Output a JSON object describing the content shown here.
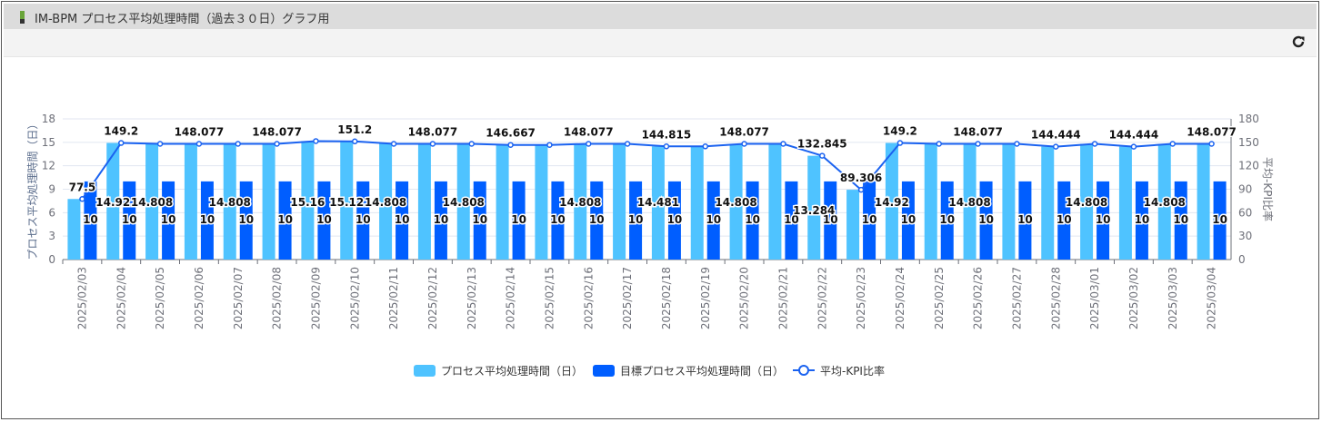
{
  "panel": {
    "title": "IM-BPM プロセス平均処理時間（過去３０日）グラフ用",
    "refresh_icon": "refresh-icon"
  },
  "colors": {
    "process": "#4fc3ff",
    "target": "#005eff",
    "ratio": "#1a62f0"
  },
  "chart_data": {
    "type": "bar+line",
    "categories": [
      "2025/02/03",
      "2025/02/04",
      "2025/02/05",
      "2025/02/06",
      "2025/02/07",
      "2025/02/08",
      "2025/02/09",
      "2025/02/10",
      "2025/02/11",
      "2025/02/12",
      "2025/02/13",
      "2025/02/14",
      "2025/02/15",
      "2025/02/16",
      "2025/02/17",
      "2025/02/18",
      "2025/02/19",
      "2025/02/20",
      "2025/02/21",
      "2025/02/22",
      "2025/02/23",
      "2025/02/24",
      "2025/02/25",
      "2025/02/26",
      "2025/02/27",
      "2025/02/28",
      "2025/03/01",
      "2025/03/02",
      "2025/03/03",
      "2025/03/04"
    ],
    "series": [
      {
        "name": "プロセス平均処理時間（日）",
        "type": "bar",
        "axis": "left",
        "values": [
          7.75,
          14.92,
          14.808,
          14.808,
          14.808,
          14.808,
          15.16,
          15.12,
          14.808,
          14.808,
          14.808,
          14.667,
          14.667,
          14.808,
          14.808,
          14.481,
          14.481,
          14.808,
          14.808,
          13.284,
          8.931,
          14.92,
          14.808,
          14.808,
          14.808,
          14.444,
          14.808,
          14.444,
          14.808,
          14.808
        ]
      },
      {
        "name": "目標プロセス平均処理時間（日）",
        "type": "bar",
        "axis": "left",
        "values": [
          10,
          10,
          10,
          10,
          10,
          10,
          10,
          10,
          10,
          10,
          10,
          10,
          10,
          10,
          10,
          10,
          10,
          10,
          10,
          10,
          10,
          10,
          10,
          10,
          10,
          10,
          10,
          10,
          10,
          10
        ]
      },
      {
        "name": "平均-KPI比率",
        "type": "line",
        "axis": "right",
        "values": [
          77.5,
          149.2,
          148.077,
          148.077,
          148.077,
          148.077,
          151.6,
          151.2,
          148.077,
          148.077,
          148.077,
          146.667,
          146.667,
          148.077,
          148.077,
          144.815,
          144.815,
          148.077,
          148.077,
          132.845,
          89.306,
          149.2,
          148.077,
          148.077,
          148.077,
          144.444,
          148.077,
          144.444,
          148.077,
          148.077
        ]
      }
    ],
    "ylabel": "プロセス平均処理時間（日）",
    "y2label": "平均-KPI比率",
    "ylim": [
      0,
      18
    ],
    "yticks": [
      "0",
      "3",
      "6",
      "9",
      "12",
      "15",
      "18"
    ],
    "y2lim": [
      0,
      180
    ],
    "y2ticks": [
      "0",
      "30",
      "60",
      "90",
      "120",
      "150",
      "180"
    ],
    "grid": true,
    "legend": "bottom-center"
  }
}
